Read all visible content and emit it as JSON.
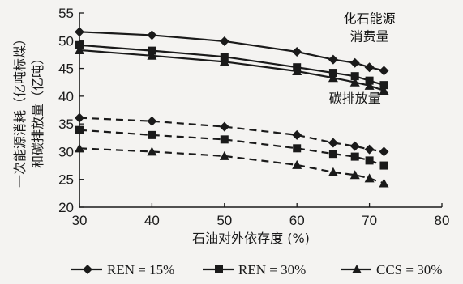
{
  "chart_data": {
    "type": "line",
    "xlabel": "石油对外依存度 (%)",
    "ylabel_lines": [
      "一次能源消耗（亿吨标煤）",
      "和碳排放量（亿吨）"
    ],
    "xlim": [
      30,
      80
    ],
    "ylim": [
      20,
      55
    ],
    "x_ticks": [
      30,
      40,
      50,
      60,
      70,
      80
    ],
    "y_ticks": [
      20,
      25,
      30,
      35,
      40,
      45,
      50,
      55
    ],
    "grid": false,
    "legend_position": "bottom",
    "annotations": [
      {
        "lines": [
          "化石能源",
          "消费量"
        ],
        "anchor": {
          "x": 70,
          "y": 53.2
        }
      },
      {
        "lines": [
          "碳排放量"
        ],
        "anchor": {
          "x": 68,
          "y": 38.8
        }
      }
    ],
    "series": [
      {
        "name": "REN = 15%",
        "marker": "diamond",
        "group": "energy",
        "dash": "solid",
        "x": [
          30,
          40,
          50,
          60,
          65,
          68,
          70,
          72
        ],
        "y": [
          51.6,
          51.0,
          49.9,
          48.0,
          46.6,
          46.0,
          45.2,
          44.6
        ]
      },
      {
        "name": "REN = 30%",
        "marker": "square",
        "group": "energy",
        "dash": "solid",
        "x": [
          30,
          40,
          50,
          60,
          65,
          68,
          70,
          72
        ],
        "y": [
          49.2,
          48.2,
          47.1,
          45.2,
          44.2,
          43.6,
          42.8,
          42.0
        ]
      },
      {
        "name": "CCS = 30%",
        "marker": "triangle",
        "group": "energy",
        "dash": "solid",
        "x": [
          30,
          40,
          50,
          60,
          65,
          68,
          70,
          72
        ],
        "y": [
          48.3,
          47.3,
          46.2,
          44.5,
          43.3,
          42.5,
          41.9,
          41.0
        ]
      },
      {
        "name": "REN = 15%",
        "marker": "diamond",
        "group": "carbon",
        "dash": "dashed",
        "x": [
          30,
          40,
          50,
          60,
          65,
          68,
          70,
          72
        ],
        "y": [
          36.1,
          35.5,
          34.5,
          33.0,
          31.6,
          31.0,
          30.4,
          30.0
        ]
      },
      {
        "name": "REN = 30%",
        "marker": "square",
        "group": "carbon",
        "dash": "dashed",
        "x": [
          30,
          40,
          50,
          60,
          65,
          68,
          70,
          72
        ],
        "y": [
          33.9,
          33.0,
          32.2,
          30.6,
          29.6,
          29.1,
          28.4,
          27.5
        ]
      },
      {
        "name": "CCS = 30%",
        "marker": "triangle",
        "group": "carbon",
        "dash": "dashed",
        "x": [
          30,
          40,
          50,
          60,
          65,
          68,
          70,
          72
        ],
        "y": [
          30.6,
          30.0,
          29.2,
          27.6,
          26.3,
          25.8,
          25.2,
          24.3
        ]
      }
    ],
    "legend": [
      {
        "label": "REN = 15%",
        "marker": "diamond"
      },
      {
        "label": "REN = 30%",
        "marker": "square"
      },
      {
        "label": "CCS = 30%",
        "marker": "triangle"
      }
    ],
    "colors": {
      "line": "#1a1a1a",
      "background": "#f4f3f1"
    }
  }
}
